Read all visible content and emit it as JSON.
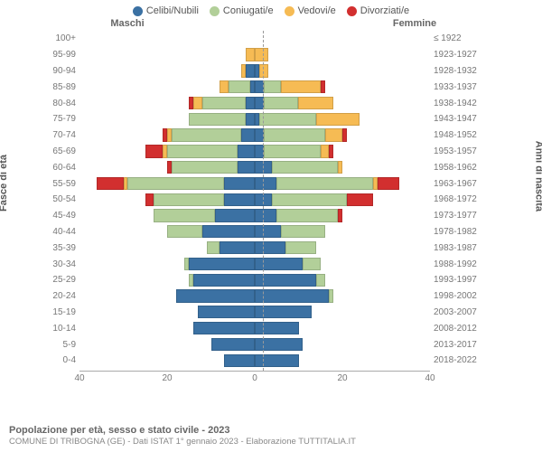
{
  "legend": [
    {
      "label": "Celibi/Nubili",
      "color": "#3b71a3"
    },
    {
      "label": "Coniugati/e",
      "color": "#b2cf99"
    },
    {
      "label": "Vedovi/e",
      "color": "#f6bb54"
    },
    {
      "label": "Divorziati/e",
      "color": "#d22f2f"
    }
  ],
  "header": {
    "male": "Maschi",
    "female": "Femmine"
  },
  "axes": {
    "left_title": "Fasce di età",
    "right_title": "Anni di nascita",
    "xmax": 40,
    "xticks": [
      40,
      20,
      0,
      20,
      40
    ]
  },
  "colors": {
    "celibi": "#3b71a3",
    "coniugati": "#b2cf99",
    "vedovi": "#f6bb54",
    "divorziati": "#d22f2f"
  },
  "rows": [
    {
      "age": "100+",
      "birth": "≤ 1922",
      "m": {
        "c": 0,
        "g": 0,
        "v": 0,
        "d": 0
      },
      "f": {
        "c": 0,
        "g": 0,
        "v": 0,
        "d": 0
      }
    },
    {
      "age": "95-99",
      "birth": "1923-1927",
      "m": {
        "c": 0,
        "g": 0,
        "v": 2,
        "d": 0
      },
      "f": {
        "c": 0,
        "g": 0,
        "v": 3,
        "d": 0
      }
    },
    {
      "age": "90-94",
      "birth": "1928-1932",
      "m": {
        "c": 2,
        "g": 0,
        "v": 1,
        "d": 0
      },
      "f": {
        "c": 1,
        "g": 0,
        "v": 2,
        "d": 0
      }
    },
    {
      "age": "85-89",
      "birth": "1933-1937",
      "m": {
        "c": 1,
        "g": 5,
        "v": 2,
        "d": 0
      },
      "f": {
        "c": 2,
        "g": 4,
        "v": 9,
        "d": 1
      }
    },
    {
      "age": "80-84",
      "birth": "1938-1942",
      "m": {
        "c": 2,
        "g": 10,
        "v": 2,
        "d": 1
      },
      "f": {
        "c": 2,
        "g": 8,
        "v": 8,
        "d": 0
      }
    },
    {
      "age": "75-79",
      "birth": "1943-1947",
      "m": {
        "c": 2,
        "g": 13,
        "v": 0,
        "d": 0
      },
      "f": {
        "c": 1,
        "g": 13,
        "v": 10,
        "d": 0
      }
    },
    {
      "age": "70-74",
      "birth": "1948-1952",
      "m": {
        "c": 3,
        "g": 16,
        "v": 1,
        "d": 1
      },
      "f": {
        "c": 2,
        "g": 14,
        "v": 4,
        "d": 1
      }
    },
    {
      "age": "65-69",
      "birth": "1953-1957",
      "m": {
        "c": 4,
        "g": 16,
        "v": 1,
        "d": 4
      },
      "f": {
        "c": 2,
        "g": 13,
        "v": 2,
        "d": 1
      }
    },
    {
      "age": "60-64",
      "birth": "1958-1962",
      "m": {
        "c": 4,
        "g": 15,
        "v": 0,
        "d": 1
      },
      "f": {
        "c": 4,
        "g": 15,
        "v": 1,
        "d": 0
      }
    },
    {
      "age": "55-59",
      "birth": "1963-1967",
      "m": {
        "c": 7,
        "g": 22,
        "v": 1,
        "d": 6
      },
      "f": {
        "c": 5,
        "g": 22,
        "v": 1,
        "d": 5
      }
    },
    {
      "age": "50-54",
      "birth": "1968-1972",
      "m": {
        "c": 7,
        "g": 16,
        "v": 0,
        "d": 2
      },
      "f": {
        "c": 4,
        "g": 17,
        "v": 0,
        "d": 6
      }
    },
    {
      "age": "45-49",
      "birth": "1973-1977",
      "m": {
        "c": 9,
        "g": 14,
        "v": 0,
        "d": 0
      },
      "f": {
        "c": 5,
        "g": 14,
        "v": 0,
        "d": 1
      }
    },
    {
      "age": "40-44",
      "birth": "1978-1982",
      "m": {
        "c": 12,
        "g": 8,
        "v": 0,
        "d": 0
      },
      "f": {
        "c": 6,
        "g": 10,
        "v": 0,
        "d": 0
      }
    },
    {
      "age": "35-39",
      "birth": "1983-1987",
      "m": {
        "c": 8,
        "g": 3,
        "v": 0,
        "d": 0
      },
      "f": {
        "c": 7,
        "g": 7,
        "v": 0,
        "d": 0
      }
    },
    {
      "age": "30-34",
      "birth": "1988-1992",
      "m": {
        "c": 15,
        "g": 1,
        "v": 0,
        "d": 0
      },
      "f": {
        "c": 11,
        "g": 4,
        "v": 0,
        "d": 0
      }
    },
    {
      "age": "25-29",
      "birth": "1993-1997",
      "m": {
        "c": 14,
        "g": 1,
        "v": 0,
        "d": 0
      },
      "f": {
        "c": 14,
        "g": 2,
        "v": 0,
        "d": 0
      }
    },
    {
      "age": "20-24",
      "birth": "1998-2002",
      "m": {
        "c": 18,
        "g": 0,
        "v": 0,
        "d": 0
      },
      "f": {
        "c": 17,
        "g": 1,
        "v": 0,
        "d": 0
      }
    },
    {
      "age": "15-19",
      "birth": "2003-2007",
      "m": {
        "c": 13,
        "g": 0,
        "v": 0,
        "d": 0
      },
      "f": {
        "c": 13,
        "g": 0,
        "v": 0,
        "d": 0
      }
    },
    {
      "age": "10-14",
      "birth": "2008-2012",
      "m": {
        "c": 14,
        "g": 0,
        "v": 0,
        "d": 0
      },
      "f": {
        "c": 10,
        "g": 0,
        "v": 0,
        "d": 0
      }
    },
    {
      "age": "5-9",
      "birth": "2013-2017",
      "m": {
        "c": 10,
        "g": 0,
        "v": 0,
        "d": 0
      },
      "f": {
        "c": 11,
        "g": 0,
        "v": 0,
        "d": 0
      }
    },
    {
      "age": "0-4",
      "birth": "2018-2022",
      "m": {
        "c": 7,
        "g": 0,
        "v": 0,
        "d": 0
      },
      "f": {
        "c": 10,
        "g": 0,
        "v": 0,
        "d": 0
      }
    }
  ],
  "footer": {
    "title": "Popolazione per età, sesso e stato civile - 2023",
    "subtitle": "COMUNE DI TRIBOGNA (GE) - Dati ISTAT 1° gennaio 2023 - Elaborazione TUTTITALIA.IT"
  }
}
